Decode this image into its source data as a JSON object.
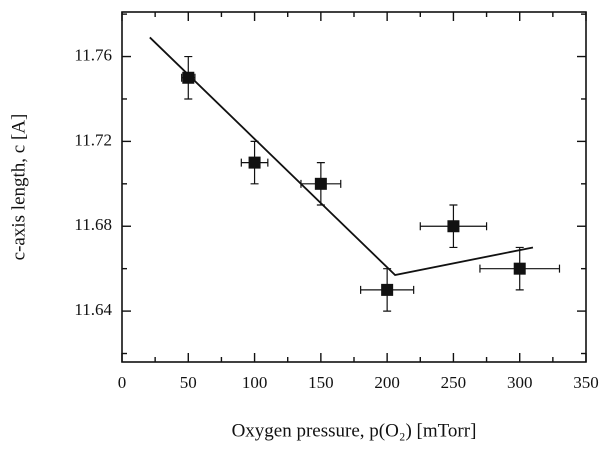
{
  "chart_data": {
    "type": "scatter",
    "xlabel": "Oxygen pressure, p(O₂) [mTorr]",
    "ylabel": "c-axis length, c [A]",
    "x": [
      50,
      100,
      150,
      200,
      250,
      300
    ],
    "values": [
      11.75,
      11.71,
      11.7,
      11.65,
      11.68,
      11.66
    ],
    "xerr": [
      5,
      10,
      15,
      20,
      25,
      30
    ],
    "yerr": [
      0.01,
      0.01,
      0.01,
      0.01,
      0.01,
      0.01
    ],
    "color": "#111111",
    "fit": {
      "x": [
        21,
        206,
        310
      ],
      "values": [
        11.769,
        11.657,
        11.67
      ],
      "color": "#111111"
    },
    "xlim": [
      0,
      350
    ],
    "ylim": [
      11.616,
      11.781
    ],
    "xticks": [
      0,
      50,
      100,
      150,
      200,
      250,
      300,
      350
    ],
    "yticks": [
      11.64,
      11.68,
      11.72,
      11.76
    ],
    "x_minor_ticks": [
      25,
      75,
      125,
      175,
      225,
      275,
      325
    ],
    "y_minor_ticks": [
      11.62,
      11.66,
      11.7,
      11.74,
      11.78
    ]
  }
}
